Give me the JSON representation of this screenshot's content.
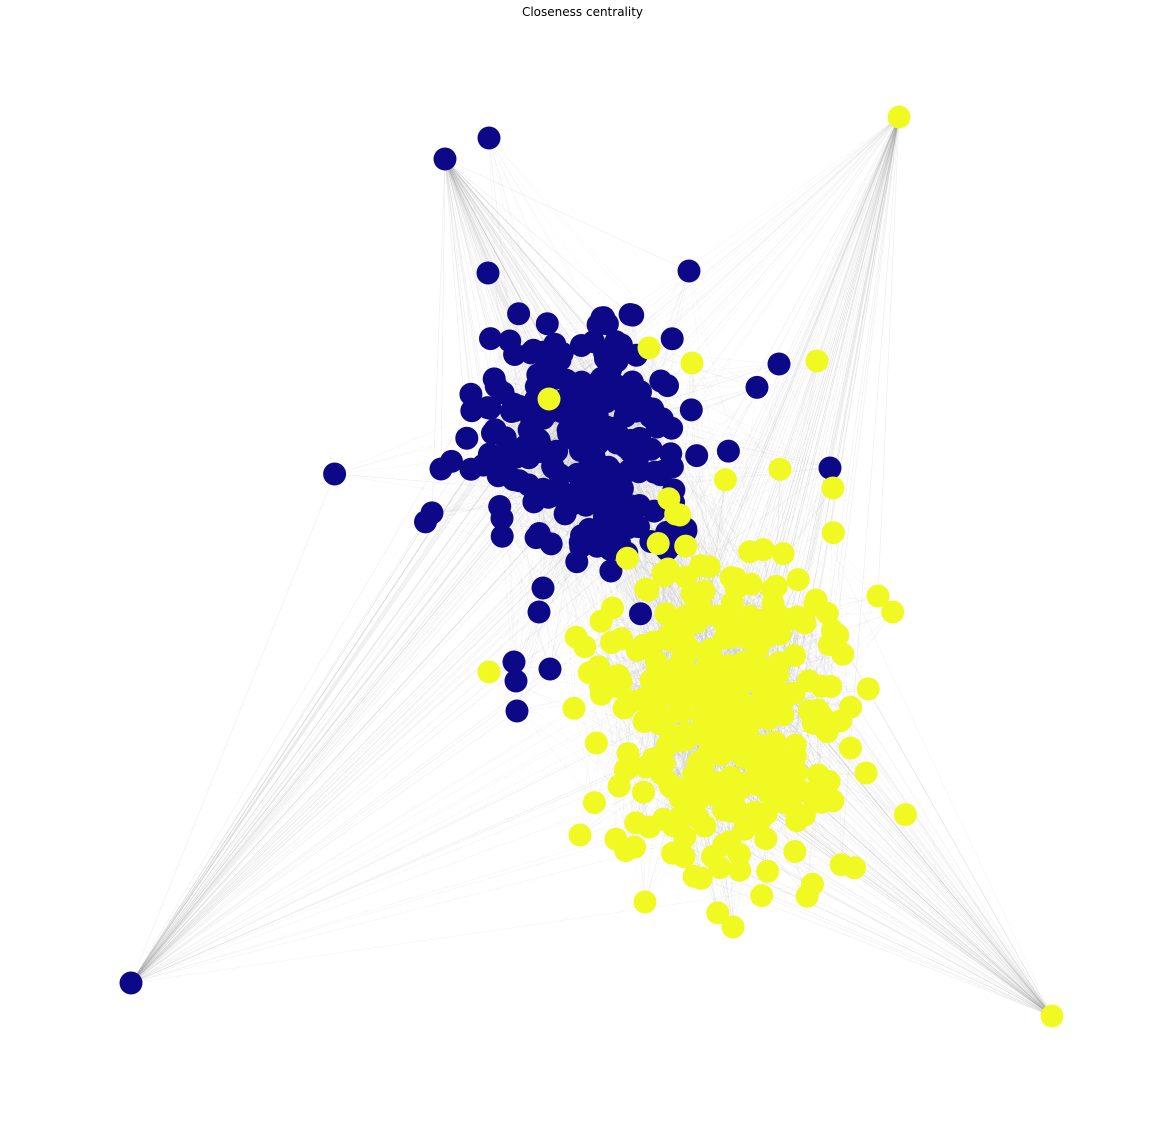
{
  "title": "Closeness centrality",
  "colors": {
    "background": "#ffffff",
    "community_a": "#0d0887",
    "community_b": "#f0f921",
    "edge": "#9a9a9a"
  },
  "network": {
    "type": "node-link graph",
    "communities": [
      {
        "color": "#0d0887"
      },
      {
        "color": "#f0f921"
      }
    ]
  }
}
